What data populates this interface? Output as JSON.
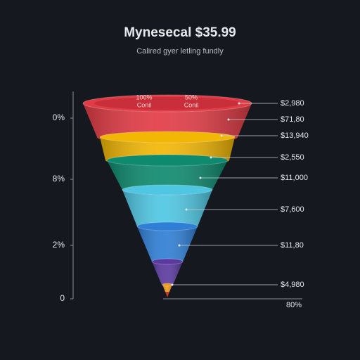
{
  "header": {
    "title": "Mynesecal $35.99",
    "subtitle": "Calired gyer letling fundly"
  },
  "left_axis_labels": [
    "0%",
    "8%",
    "2%",
    "0"
  ],
  "top_annotations": [
    {
      "value": "100%",
      "caption": "Conil"
    },
    {
      "value": "50%",
      "caption": "Conil"
    }
  ],
  "stage_labels": [
    "$2,980",
    "$71,80",
    "$13,940",
    "$2,550",
    "$11,000",
    "$7,600",
    "$11,80",
    "$4,980"
  ],
  "bottom_label": "80%"
}
